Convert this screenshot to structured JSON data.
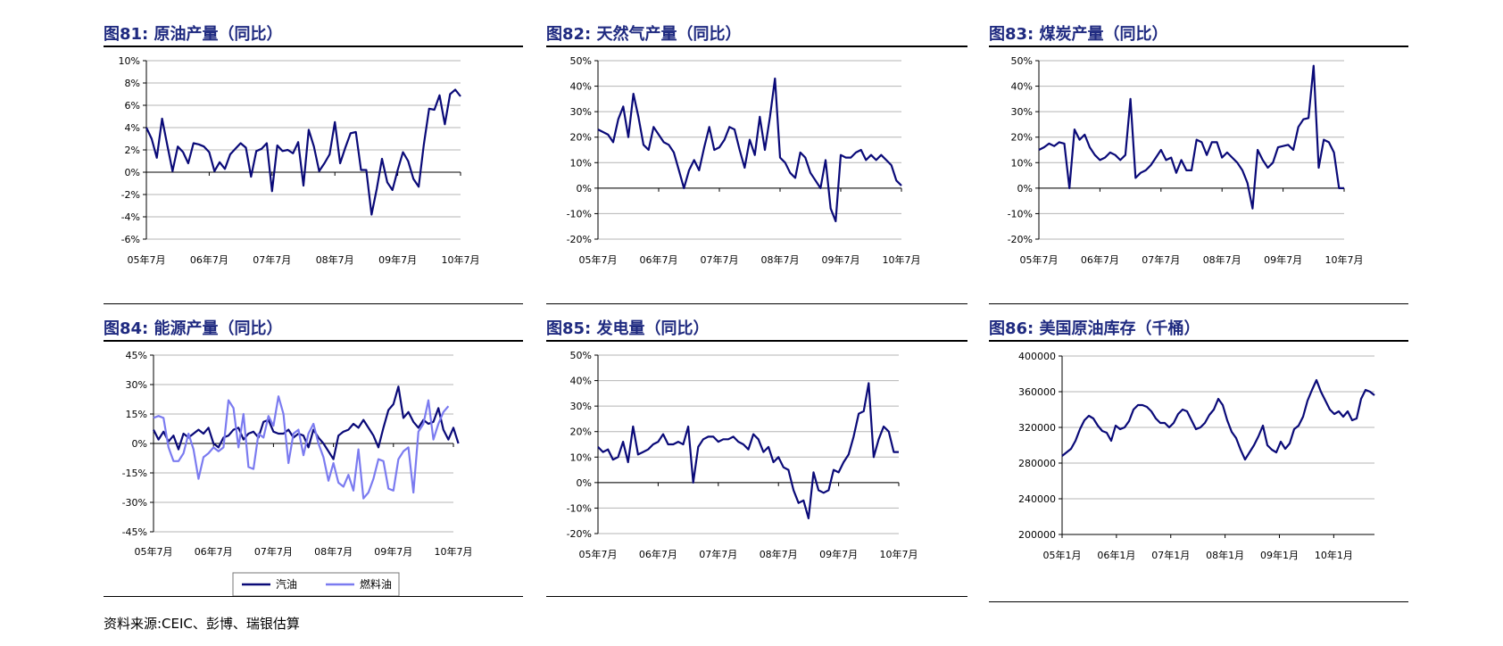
{
  "source_note": "资料来源:CEIC、彭博、瑞银估算",
  "chart_data": [
    {
      "type": "line",
      "title": "图81: 原油产量（同比）",
      "ylim": [
        -6,
        10
      ],
      "yticks": [
        -6,
        -4,
        -2,
        0,
        2,
        4,
        6,
        8,
        10
      ],
      "ytick_labels": [
        "-6%",
        "-4%",
        "-2%",
        "0%",
        "2%",
        "4%",
        "6%",
        "8%",
        "10%"
      ],
      "xticks": [
        0,
        12,
        24,
        36,
        48,
        60
      ],
      "xtick_labels": [
        "05年7月",
        "06年7月",
        "07年7月",
        "08年7月",
        "09年7月",
        "10年7月"
      ],
      "xmax": 60,
      "grid": true,
      "series": [
        {
          "color": "#0a0a78",
          "values": [
            4.0,
            3.0,
            1.3,
            4.8,
            2.4,
            0.1,
            2.3,
            1.8,
            0.8,
            2.6,
            2.5,
            2.3,
            1.8,
            0.1,
            0.9,
            0.3,
            1.6,
            2.1,
            2.6,
            2.2,
            -0.4,
            1.9,
            2.1,
            2.6,
            -1.7,
            2.4,
            1.9,
            2.0,
            1.7,
            2.7,
            -1.2,
            3.8,
            2.3,
            0.1,
            0.8,
            1.6,
            4.5,
            0.8,
            2.2,
            3.5,
            3.6,
            0.2,
            0.2,
            -3.8,
            -1.5,
            1.2,
            -0.9,
            -1.6,
            0.2,
            1.8,
            1.0,
            -0.6,
            -1.3,
            2.5,
            5.7,
            5.6,
            6.9,
            4.3,
            7.0,
            7.4,
            6.8
          ]
        }
      ]
    },
    {
      "type": "line",
      "title": "图82: 天然气产量（同比）",
      "ylim": [
        -20,
        50
      ],
      "yticks": [
        -20,
        -10,
        0,
        10,
        20,
        30,
        40,
        50
      ],
      "ytick_labels": [
        "-20%",
        "-10%",
        "0%",
        "10%",
        "20%",
        "30%",
        "40%",
        "50%"
      ],
      "xticks": [
        0,
        12,
        24,
        36,
        48,
        60
      ],
      "xtick_labels": [
        "05年7月",
        "06年7月",
        "07年7月",
        "08年7月",
        "09年7月",
        "10年7月"
      ],
      "xmax": 60,
      "grid": true,
      "series": [
        {
          "color": "#0a0a78",
          "values": [
            23,
            22,
            21,
            18,
            27,
            32,
            20,
            37,
            28,
            17,
            15,
            24,
            21,
            18,
            17,
            14,
            7,
            0,
            7,
            11,
            7,
            16,
            24,
            15,
            16,
            19,
            24,
            23,
            15,
            8,
            19,
            13,
            28,
            15,
            28,
            43,
            12,
            10,
            6,
            4,
            14,
            12,
            6,
            3,
            0,
            11,
            -8,
            -13,
            13,
            12,
            12,
            14,
            15,
            11,
            13,
            11,
            13,
            11,
            9,
            3,
            1
          ]
        }
      ]
    },
    {
      "type": "line",
      "title": "图83: 煤炭产量（同比）",
      "ylim": [
        -20,
        50
      ],
      "yticks": [
        -20,
        -10,
        0,
        10,
        20,
        30,
        40,
        50
      ],
      "ytick_labels": [
        "-20%",
        "-10%",
        "0%",
        "10%",
        "20%",
        "30%",
        "40%",
        "50%"
      ],
      "xticks": [
        0,
        12,
        24,
        36,
        48,
        60
      ],
      "xtick_labels": [
        "05年7月",
        "06年7月",
        "07年7月",
        "08年7月",
        "09年7月",
        "10年7月"
      ],
      "xmax": 60,
      "grid": true,
      "series": [
        {
          "color": "#0a0a78",
          "values": [
            15,
            16,
            17.5,
            16.5,
            18,
            17.5,
            0,
            23,
            19,
            21,
            16,
            13,
            11,
            12,
            14,
            13,
            11,
            13,
            35,
            4,
            6,
            7,
            9,
            12,
            15,
            11,
            12,
            6,
            11,
            7,
            7,
            19,
            18,
            13,
            18,
            18,
            12,
            14,
            12,
            10,
            7,
            2,
            -8,
            15,
            11,
            8,
            10,
            16,
            16.5,
            17,
            15,
            24,
            27,
            27.5,
            48,
            8,
            19,
            18,
            14,
            0,
            0
          ]
        }
      ]
    },
    {
      "type": "line",
      "title": "图84: 能源产量（同比）",
      "ylim": [
        -45,
        45
      ],
      "yticks": [
        -45,
        -30,
        -15,
        0,
        15,
        30,
        45
      ],
      "ytick_labels": [
        "-45%",
        "-30%",
        "-15%",
        "0%",
        "15%",
        "30%",
        "45%"
      ],
      "xticks": [
        0,
        12,
        24,
        36,
        48,
        60
      ],
      "xtick_labels": [
        "05年7月",
        "06年7月",
        "07年7月",
        "08年7月",
        "09年7月",
        "10年7月"
      ],
      "xmax": 60,
      "grid": true,
      "legend": "bottom",
      "series": [
        {
          "name": "汽油",
          "color": "#0a0a78",
          "values": [
            7,
            2,
            6,
            1,
            4,
            -3,
            5,
            3,
            5,
            7,
            5,
            8,
            0,
            -2,
            3,
            4,
            7,
            8,
            2,
            5,
            6,
            3,
            11,
            12,
            6,
            5,
            5,
            7,
            3,
            5,
            4,
            -2,
            7,
            3,
            0,
            -4,
            -8,
            4,
            6,
            7,
            10,
            8,
            12,
            8,
            4,
            -2,
            8,
            17,
            20,
            29,
            13,
            16,
            11,
            8,
            12,
            10,
            11,
            18,
            7,
            2,
            8,
            0
          ]
        },
        {
          "name": "燃料油",
          "color": "#7b7bf0",
          "values": [
            13,
            14,
            13,
            -2,
            -9,
            -9,
            -5,
            5,
            -3,
            -18,
            -7,
            -5,
            -2,
            -4,
            -2,
            22,
            18,
            -2,
            15,
            -12,
            -13,
            5,
            3,
            14,
            9,
            24,
            15,
            -10,
            5,
            7,
            -6,
            5,
            10,
            0,
            -7,
            -19,
            -10,
            -20,
            -22,
            -16,
            -24,
            -3,
            -28,
            -25,
            -18,
            -8,
            -9,
            -23,
            -24,
            -8,
            -4,
            -2,
            -25,
            6,
            10,
            22,
            2,
            10,
            16,
            19
          ]
        }
      ]
    },
    {
      "type": "line",
      "title": "图85: 发电量（同比）",
      "ylim": [
        -20,
        50
      ],
      "yticks": [
        -20,
        -10,
        0,
        10,
        20,
        30,
        40,
        50
      ],
      "ytick_labels": [
        "-20%",
        "-10%",
        "0%",
        "10%",
        "20%",
        "30%",
        "40%",
        "50%"
      ],
      "xticks": [
        0,
        12,
        24,
        36,
        48,
        60
      ],
      "xtick_labels": [
        "05年7月",
        "06年7月",
        "07年7月",
        "08年7月",
        "09年7月",
        "10年7月"
      ],
      "xmax": 60,
      "grid": true,
      "series": [
        {
          "color": "#0a0a78",
          "values": [
            14,
            12,
            13,
            9,
            10,
            16,
            8,
            22,
            11,
            12,
            13,
            15,
            16,
            19,
            15,
            15,
            16,
            15,
            22,
            0,
            14,
            17,
            18,
            18,
            16,
            17,
            17,
            18,
            16,
            15,
            13,
            19,
            17,
            12,
            14,
            8,
            10,
            6,
            5,
            -3,
            -8,
            -7,
            -14,
            4,
            -3,
            -4,
            -3,
            5,
            4,
            8,
            11,
            18,
            27,
            28,
            39,
            10,
            17,
            22,
            20,
            12,
            12
          ]
        }
      ]
    },
    {
      "type": "line",
      "title": "图86: 美国原油库存（千桶）",
      "ylim": [
        200000,
        400000
      ],
      "yticks": [
        200000,
        240000,
        280000,
        320000,
        360000,
        400000
      ],
      "ytick_labels": [
        "200000",
        "240000",
        "280000",
        "320000",
        "360000",
        "400000"
      ],
      "xticks": [
        0,
        12,
        24,
        36,
        48,
        60
      ],
      "xtick_labels": [
        "05年1月",
        "06年1月",
        "07年1月",
        "08年1月",
        "09年1月",
        "10年1月"
      ],
      "xmax": 69,
      "grid": true,
      "series": [
        {
          "color": "#0a0a78",
          "values": [
            288000,
            292000,
            296000,
            305000,
            318000,
            328000,
            333000,
            330000,
            322000,
            316000,
            314000,
            305000,
            322000,
            318000,
            320000,
            327000,
            340000,
            345000,
            345000,
            343000,
            338000,
            330000,
            325000,
            325000,
            320000,
            325000,
            335000,
            340000,
            338000,
            328000,
            318000,
            320000,
            325000,
            334000,
            340000,
            352000,
            345000,
            328000,
            315000,
            308000,
            295000,
            284000,
            292000,
            300000,
            310000,
            322000,
            300000,
            295000,
            292000,
            304000,
            296000,
            302000,
            318000,
            322000,
            332000,
            350000,
            362000,
            373000,
            360000,
            350000,
            340000,
            335000,
            338000,
            332000,
            338000,
            328000,
            330000,
            352000,
            362000,
            360000,
            356000
          ]
        }
      ]
    }
  ]
}
